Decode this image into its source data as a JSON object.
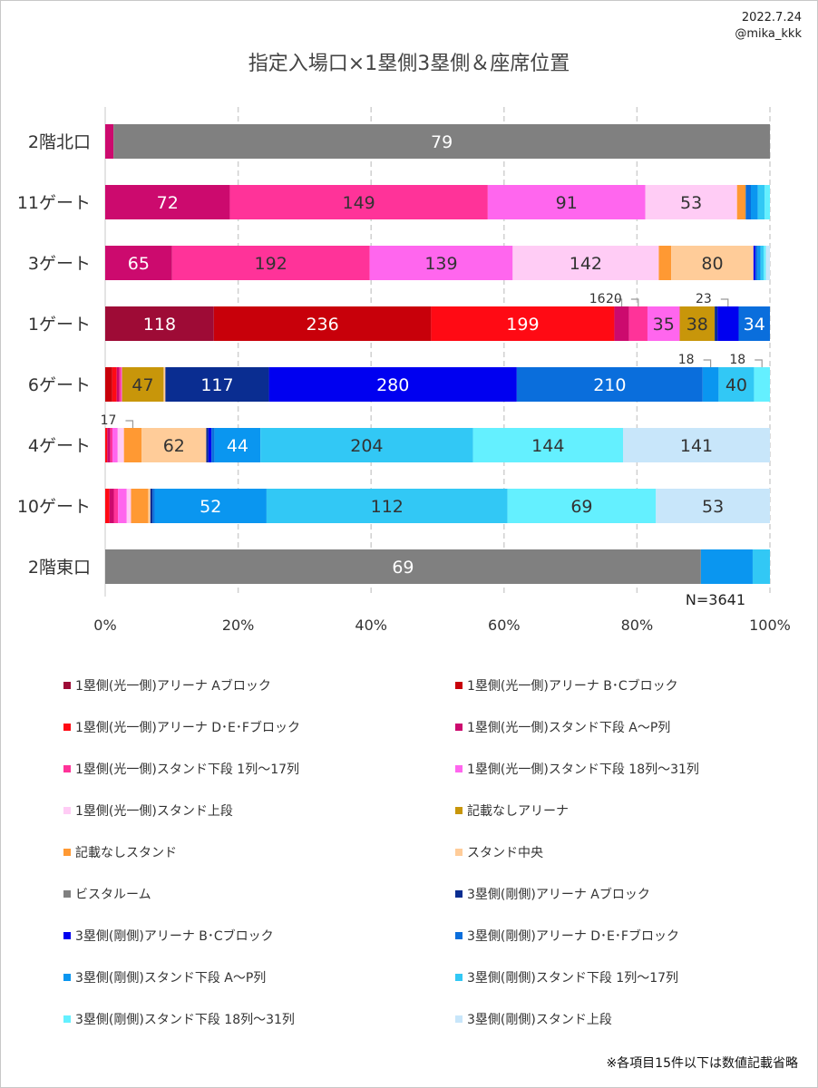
{
  "header": {
    "date": "2022.7.24",
    "handle": "@mika_kkk",
    "title": "指定入場口×1塁側3塁側＆座席位置"
  },
  "footnote": "※各項目15件以下は数値記載省略",
  "n_label": "N=3641",
  "chart_data": {
    "type": "bar",
    "orientation": "horizontal",
    "stacked": "percent",
    "title": "指定入場口×1塁側3塁側＆座席位置",
    "xlim": [
      0,
      100
    ],
    "x_ticks": [
      "0%",
      "20%",
      "40%",
      "60%",
      "80%",
      "100%"
    ],
    "grid": "vertical dashed",
    "legend_position": "bottom",
    "label_threshold": 15,
    "categories": [
      "2階北口",
      "11ゲート",
      "3ゲート",
      "1ゲート",
      "6ゲート",
      "4ゲート",
      "10ゲート",
      "2階東口"
    ],
    "series": [
      {
        "name": "1塁側(光一側)アリーナ Aブロック",
        "color": "#9e0b36",
        "values": [
          0,
          0,
          0,
          118,
          0,
          0,
          0,
          0
        ]
      },
      {
        "name": "1塁側(光一側)アリーナ B･Cブロック",
        "color": "#c8000a",
        "values": [
          0,
          0,
          0,
          236,
          8,
          0,
          0,
          0
        ]
      },
      {
        "name": "1塁側(光一側)アリーナ D･E･Fブロック",
        "color": "#ff0a14",
        "values": [
          0,
          0,
          0,
          199,
          5,
          2,
          2,
          0
        ]
      },
      {
        "name": "1塁側(光一側)スタンド下段 A～P列",
        "color": "#cc0a6e",
        "values": [
          1,
          72,
          65,
          16,
          3,
          3,
          2,
          0
        ]
      },
      {
        "name": "1塁側(光一側)スタンド下段 1列～17列",
        "color": "#ff3399",
        "values": [
          0,
          149,
          192,
          20,
          2,
          2,
          2,
          0
        ]
      },
      {
        "name": "1塁側(光一側)スタンド下段 18列～31列",
        "color": "#ff66ee",
        "values": [
          0,
          91,
          139,
          35,
          1,
          5,
          4,
          0
        ]
      },
      {
        "name": "1塁側(光一側)スタンド上段",
        "color": "#ffccf5",
        "values": [
          0,
          53,
          142,
          0,
          0,
          6,
          2,
          0
        ]
      },
      {
        "name": "記載なしアリーナ",
        "color": "#c8960a",
        "values": [
          0,
          0,
          0,
          38,
          47,
          0,
          0,
          0
        ]
      },
      {
        "name": "記載なしスタンド",
        "color": "#ff9933",
        "values": [
          0,
          5,
          12,
          0,
          0,
          17,
          8,
          0
        ]
      },
      {
        "name": "スタンド中央",
        "color": "#ffcc99",
        "values": [
          0,
          0,
          80,
          0,
          2,
          62,
          1,
          0
        ]
      },
      {
        "name": "ビスタルーム",
        "color": "#808080",
        "values": [
          79,
          0,
          0,
          0,
          0,
          0,
          0,
          69
        ]
      },
      {
        "name": "3塁側(剛側)アリーナ Aブロック",
        "color": "#0a2d91",
        "values": [
          0,
          0,
          0,
          3,
          117,
          2,
          1,
          0
        ]
      },
      {
        "name": "3塁側(剛側)アリーナ B･Cブロック",
        "color": "#0000f0",
        "values": [
          0,
          0,
          2,
          23,
          280,
          3,
          0,
          0
        ]
      },
      {
        "name": "3塁側(剛側)アリーナ D･E･Fブロック",
        "color": "#0a6edc",
        "values": [
          0,
          3,
          2,
          34,
          210,
          3,
          1,
          0
        ]
      },
      {
        "name": "3塁側(剛側)スタンド下段 A～P列",
        "color": "#0a96f0",
        "values": [
          0,
          4,
          3,
          0,
          18,
          44,
          52,
          6
        ]
      },
      {
        "name": "3塁側(剛側)スタンド下段 1列～17列",
        "color": "#32c8f5",
        "values": [
          0,
          4,
          3,
          0,
          40,
          204,
          112,
          2
        ]
      },
      {
        "name": "3塁側(剛側)スタンド下段 18列～31列",
        "color": "#64f0ff",
        "values": [
          0,
          3,
          2,
          0,
          18,
          144,
          69,
          0
        ]
      },
      {
        "name": "3塁側(剛側)スタンド上段",
        "color": "#c8e6fa",
        "values": [
          0,
          0,
          4,
          0,
          0,
          141,
          53,
          0
        ]
      }
    ]
  }
}
